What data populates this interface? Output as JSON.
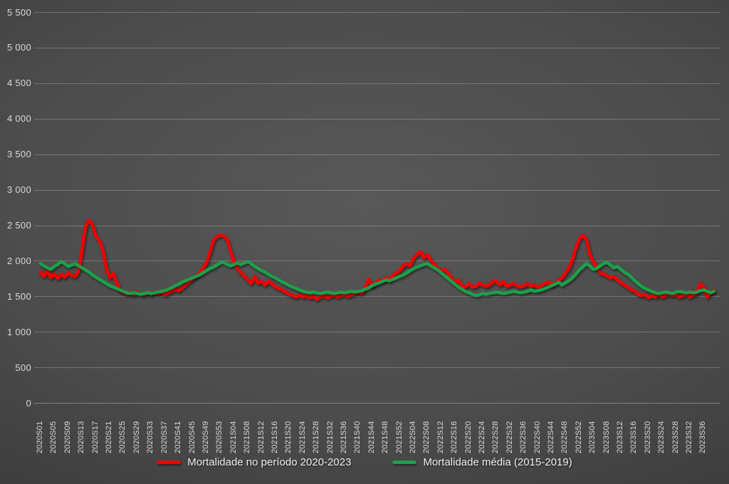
{
  "chart_data": {
    "type": "line",
    "title": "",
    "xlabel": "",
    "ylabel": "",
    "ylim": [
      0,
      5500
    ],
    "y_tick_step": 500,
    "y_tick_labels": [
      "0",
      "500",
      "1 000",
      "1 500",
      "2 000",
      "2 500",
      "3 000",
      "3 500",
      "4 000",
      "4 500",
      "5 000",
      "5 500"
    ],
    "x_tick_interval": 4,
    "grid": "horizontal",
    "legend_position": "bottom-center",
    "categories": [
      "2020S01",
      "2020S02",
      "2020S03",
      "2020S04",
      "2020S05",
      "2020S06",
      "2020S07",
      "2020S08",
      "2020S09",
      "2020S10",
      "2020S11",
      "2020S12",
      "2020S13",
      "2020S14",
      "2020S15",
      "2020S16",
      "2020S17",
      "2020S18",
      "2020S19",
      "2020S20",
      "2020S21",
      "2020S22",
      "2020S23",
      "2020S24",
      "2020S25",
      "2020S26",
      "2020S27",
      "2020S28",
      "2020S29",
      "2020S30",
      "2020S31",
      "2020S32",
      "2020S33",
      "2020S34",
      "2020S35",
      "2020S36",
      "2020S37",
      "2020S38",
      "2020S39",
      "2020S40",
      "2020S41",
      "2020S42",
      "2020S43",
      "2020S44",
      "2020S45",
      "2020S46",
      "2020S47",
      "2020S48",
      "2020S49",
      "2020S50",
      "2020S51",
      "2020S52",
      "2020S53",
      "2021S01",
      "2021S02",
      "2021S03",
      "2021S04",
      "2021S05",
      "2021S06",
      "2021S07",
      "2021S08",
      "2021S09",
      "2021S10",
      "2021S11",
      "2021S12",
      "2021S13",
      "2021S14",
      "2021S15",
      "2021S16",
      "2021S17",
      "2021S18",
      "2021S19",
      "2021S20",
      "2021S21",
      "2021S22",
      "2021S23",
      "2021S24",
      "2021S25",
      "2021S26",
      "2021S27",
      "2021S28",
      "2021S29",
      "2021S30",
      "2021S31",
      "2021S32",
      "2021S33",
      "2021S34",
      "2021S35",
      "2021S36",
      "2021S37",
      "2021S38",
      "2021S39",
      "2021S40",
      "2021S41",
      "2021S42",
      "2021S43",
      "2021S44",
      "2021S45",
      "2021S46",
      "2021S47",
      "2021S48",
      "2021S49",
      "2021S50",
      "2021S51",
      "2021S52",
      "2022S01",
      "2022S02",
      "2022S03",
      "2022S04",
      "2022S05",
      "2022S06",
      "2022S07",
      "2022S08",
      "2022S09",
      "2022S10",
      "2022S11",
      "2022S12",
      "2022S13",
      "2022S14",
      "2022S15",
      "2022S16",
      "2022S17",
      "2022S18",
      "2022S19",
      "2022S20",
      "2022S21",
      "2022S22",
      "2022S23",
      "2022S24",
      "2022S25",
      "2022S26",
      "2022S27",
      "2022S28",
      "2022S29",
      "2022S30",
      "2022S31",
      "2022S32",
      "2022S33",
      "2022S34",
      "2022S35",
      "2022S36",
      "2022S37",
      "2022S38",
      "2022S39",
      "2022S40",
      "2022S41",
      "2022S42",
      "2022S43",
      "2022S44",
      "2022S45",
      "2022S46",
      "2022S47",
      "2022S48",
      "2022S49",
      "2022S50",
      "2022S51",
      "2022S52",
      "2023S01",
      "2023S02",
      "2023S03",
      "2023S04",
      "2023S05",
      "2023S06",
      "2023S07",
      "2023S08",
      "2023S09",
      "2023S10",
      "2023S11",
      "2023S12",
      "2023S13",
      "2023S14",
      "2023S15",
      "2023S16",
      "2023S17",
      "2023S18",
      "2023S19",
      "2023S20",
      "2023S21",
      "2023S22",
      "2023S23",
      "2023S24",
      "2023S25",
      "2023S26",
      "2023S27",
      "2023S28",
      "2023S29",
      "2023S30",
      "2023S31",
      "2023S32",
      "2023S33",
      "2023S34",
      "2023S35",
      "2023S36",
      "2023S37",
      "2023S38",
      "2023S39"
    ],
    "series": [
      {
        "name": "Mortalidade no período 2020-2023",
        "color": "#F40000",
        "values": [
          1840,
          1780,
          1860,
          1760,
          1820,
          1750,
          1810,
          1770,
          1830,
          1790,
          1780,
          1850,
          2150,
          2480,
          2570,
          2510,
          2350,
          2280,
          2160,
          1900,
          1760,
          1820,
          1700,
          1580,
          1560,
          1530,
          1550,
          1520,
          1560,
          1540,
          1520,
          1550,
          1530,
          1560,
          1540,
          1560,
          1520,
          1550,
          1570,
          1600,
          1580,
          1620,
          1660,
          1700,
          1740,
          1780,
          1830,
          1890,
          1970,
          2120,
          2280,
          2340,
          2360,
          2350,
          2300,
          2130,
          1990,
          1890,
          1830,
          1780,
          1730,
          1680,
          1780,
          1690,
          1710,
          1660,
          1710,
          1680,
          1630,
          1610,
          1590,
          1560,
          1530,
          1510,
          1490,
          1520,
          1490,
          1510,
          1480,
          1500,
          1460,
          1490,
          1510,
          1480,
          1500,
          1520,
          1490,
          1510,
          1530,
          1500,
          1520,
          1540,
          1560,
          1540,
          1630,
          1740,
          1640,
          1680,
          1730,
          1710,
          1760,
          1740,
          1790,
          1830,
          1860,
          1930,
          1960,
          1930,
          2040,
          2090,
          2130,
          2040,
          2090,
          2010,
          1950,
          1890,
          1850,
          1880,
          1820,
          1760,
          1690,
          1730,
          1640,
          1630,
          1680,
          1630,
          1640,
          1690,
          1660,
          1640,
          1660,
          1710,
          1710,
          1660,
          1710,
          1640,
          1660,
          1680,
          1650,
          1630,
          1650,
          1680,
          1640,
          1660,
          1630,
          1650,
          1680,
          1700,
          1660,
          1680,
          1730,
          1760,
          1830,
          1900,
          2020,
          2180,
          2310,
          2360,
          2300,
          2090,
          1990,
          1910,
          1830,
          1810,
          1790,
          1760,
          1780,
          1730,
          1690,
          1660,
          1630,
          1590,
          1580,
          1530,
          1510,
          1530,
          1480,
          1510,
          1490,
          1530,
          1490,
          1510,
          1540,
          1510,
          1530,
          1490,
          1510,
          1540,
          1490,
          1520,
          1540,
          1680,
          1630,
          1490,
          1560,
          1580
        ]
      },
      {
        "name": "Mortalidade média (2015-2019)",
        "color": "#1CA04A",
        "values": [
          1960,
          1930,
          1900,
          1880,
          1920,
          1950,
          1990,
          1960,
          1920,
          1940,
          1960,
          1930,
          1900,
          1870,
          1840,
          1800,
          1770,
          1740,
          1710,
          1680,
          1650,
          1630,
          1610,
          1590,
          1570,
          1550,
          1540,
          1550,
          1540,
          1530,
          1540,
          1550,
          1540,
          1550,
          1560,
          1570,
          1580,
          1600,
          1620,
          1650,
          1670,
          1700,
          1720,
          1740,
          1760,
          1780,
          1800,
          1830,
          1860,
          1890,
          1910,
          1940,
          1970,
          1980,
          1950,
          1930,
          1950,
          1970,
          1950,
          1970,
          1990,
          1960,
          1920,
          1890,
          1860,
          1840,
          1810,
          1780,
          1760,
          1730,
          1700,
          1680,
          1650,
          1630,
          1610,
          1590,
          1570,
          1560,
          1550,
          1560,
          1550,
          1540,
          1550,
          1560,
          1550,
          1540,
          1550,
          1560,
          1550,
          1560,
          1570,
          1560,
          1570,
          1580,
          1600,
          1620,
          1650,
          1670,
          1690,
          1710,
          1730,
          1720,
          1740,
          1760,
          1780,
          1800,
          1830,
          1860,
          1890,
          1910,
          1930,
          1950,
          1960,
          1930,
          1900,
          1870,
          1830,
          1790,
          1750,
          1710,
          1670,
          1630,
          1600,
          1570,
          1550,
          1530,
          1510,
          1520,
          1540,
          1530,
          1540,
          1550,
          1560,
          1550,
          1540,
          1550,
          1560,
          1570,
          1560,
          1550,
          1560,
          1570,
          1590,
          1570,
          1580,
          1590,
          1610,
          1630,
          1650,
          1670,
          1700,
          1660,
          1690,
          1720,
          1760,
          1810,
          1870,
          1910,
          1960,
          1930,
          1880,
          1890,
          1930,
          1960,
          1980,
          1940,
          1900,
          1920,
          1880,
          1840,
          1810,
          1770,
          1720,
          1680,
          1640,
          1610,
          1590,
          1570,
          1550,
          1540,
          1550,
          1560,
          1550,
          1540,
          1560,
          1570,
          1560,
          1550,
          1560,
          1550,
          1560,
          1580,
          1590,
          1570,
          1550,
          1570
        ]
      }
    ]
  }
}
